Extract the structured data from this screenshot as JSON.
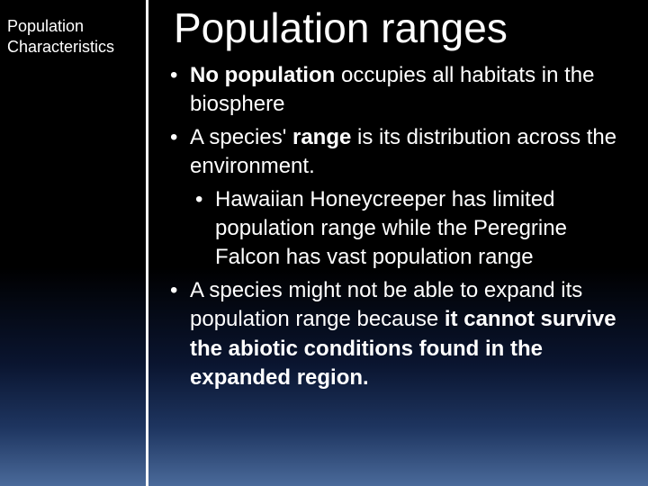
{
  "sidebar": {
    "label_line1": "Population",
    "label_line2": "Characteristics"
  },
  "slide": {
    "title": "Population ranges",
    "bullets": [
      {
        "segments": [
          {
            "text": "No population",
            "bold": true
          },
          {
            "text": " occupies all habitats in the biosphere",
            "bold": false
          }
        ]
      },
      {
        "segments": [
          {
            "text": "A species' ",
            "bold": false
          },
          {
            "text": "range",
            "bold": true
          },
          {
            "text": " is its distribution across the environment.",
            "bold": false
          }
        ],
        "sub": [
          {
            "segments": [
              {
                "text": "Hawaiian Honeycreeper has limited population range while the Peregrine Falcon has vast population range",
                "bold": false
              }
            ]
          }
        ]
      },
      {
        "segments": [
          {
            "text": "A species might not be able to expand its population range because ",
            "bold": false
          },
          {
            "text": "it cannot survive the abiotic conditions found in the expanded region.",
            "bold": true
          }
        ]
      }
    ]
  },
  "style": {
    "text_color": "#ffffff",
    "divider_color": "#ffffff",
    "background_gradient": [
      "#000000",
      "#000000",
      "#0a1530",
      "#1e3560",
      "#4a6a9a"
    ],
    "title_fontsize": 46,
    "body_fontsize": 24,
    "sidebar_fontsize": 18
  }
}
